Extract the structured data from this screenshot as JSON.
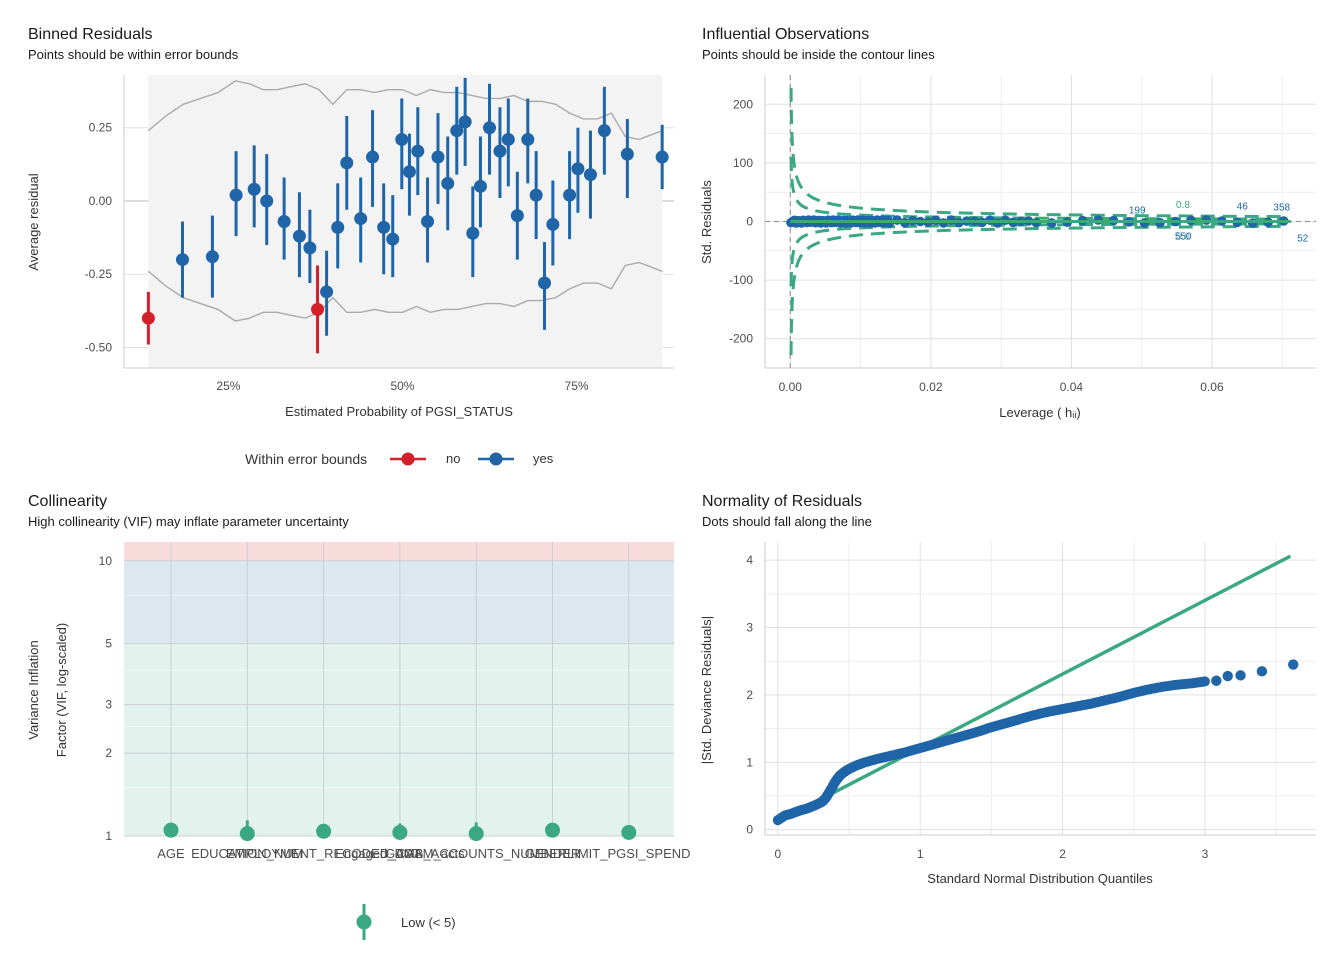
{
  "colors": {
    "blue": "#1f65a8",
    "red": "#d4202a",
    "green": "#3aa882",
    "grid": "#e0e0e0",
    "band": "#aaaaaa",
    "zone_high": "#f8dcdc",
    "zone_mod": "#dde7f0",
    "zone_low": "#e2f2ec"
  },
  "chart_data": [
    {
      "id": "binned",
      "type": "scatter",
      "title": "Binned Residuals",
      "subtitle": "Points should be within error bounds",
      "xlabel": "Estimated Probability of PGSI_STATUS",
      "ylabel": "Average residual",
      "xlim": [
        0.1,
        0.89
      ],
      "ylim": [
        -0.57,
        0.43
      ],
      "xticks": [
        0.25,
        0.5,
        0.75
      ],
      "xticklabels": [
        "25%",
        "50%",
        "75%"
      ],
      "yticks": [
        -0.5,
        -0.25,
        0.0,
        0.25
      ],
      "yticklabels": [
        "-0.50",
        "-0.25",
        "0.00",
        "0.25"
      ],
      "legend_title": "Within error bounds",
      "legend": [
        "no",
        "yes"
      ],
      "points": [
        {
          "x": 0.135,
          "y": -0.4,
          "lo": -0.49,
          "hi": -0.31,
          "grp": "no"
        },
        {
          "x": 0.184,
          "y": -0.2,
          "lo": -0.33,
          "hi": -0.07,
          "grp": "yes"
        },
        {
          "x": 0.227,
          "y": -0.19,
          "lo": -0.33,
          "hi": -0.05,
          "grp": "yes"
        },
        {
          "x": 0.261,
          "y": 0.02,
          "lo": -0.12,
          "hi": 0.17,
          "grp": "yes"
        },
        {
          "x": 0.287,
          "y": 0.04,
          "lo": -0.09,
          "hi": 0.19,
          "grp": "yes"
        },
        {
          "x": 0.305,
          "y": 0.0,
          "lo": -0.15,
          "hi": 0.16,
          "grp": "yes"
        },
        {
          "x": 0.33,
          "y": -0.07,
          "lo": -0.2,
          "hi": 0.08,
          "grp": "yes"
        },
        {
          "x": 0.352,
          "y": -0.12,
          "lo": -0.26,
          "hi": 0.03,
          "grp": "yes"
        },
        {
          "x": 0.367,
          "y": -0.16,
          "lo": -0.28,
          "hi": -0.03,
          "grp": "yes"
        },
        {
          "x": 0.378,
          "y": -0.37,
          "lo": -0.52,
          "hi": -0.22,
          "grp": "no"
        },
        {
          "x": 0.391,
          "y": -0.31,
          "lo": -0.46,
          "hi": -0.17,
          "grp": "yes"
        },
        {
          "x": 0.407,
          "y": -0.09,
          "lo": -0.23,
          "hi": 0.06,
          "grp": "yes"
        },
        {
          "x": 0.42,
          "y": 0.13,
          "lo": -0.03,
          "hi": 0.29,
          "grp": "yes"
        },
        {
          "x": 0.44,
          "y": -0.06,
          "lo": -0.21,
          "hi": 0.08,
          "grp": "yes"
        },
        {
          "x": 0.457,
          "y": 0.15,
          "lo": -0.02,
          "hi": 0.31,
          "grp": "yes"
        },
        {
          "x": 0.473,
          "y": -0.09,
          "lo": -0.25,
          "hi": 0.06,
          "grp": "yes"
        },
        {
          "x": 0.486,
          "y": -0.13,
          "lo": -0.26,
          "hi": 0.02,
          "grp": "yes"
        },
        {
          "x": 0.499,
          "y": 0.21,
          "lo": 0.04,
          "hi": 0.35,
          "grp": "yes"
        },
        {
          "x": 0.51,
          "y": 0.1,
          "lo": -0.05,
          "hi": 0.23,
          "grp": "yes"
        },
        {
          "x": 0.522,
          "y": 0.17,
          "lo": 0.02,
          "hi": 0.32,
          "grp": "yes"
        },
        {
          "x": 0.536,
          "y": -0.07,
          "lo": -0.21,
          "hi": 0.08,
          "grp": "yes"
        },
        {
          "x": 0.551,
          "y": 0.15,
          "lo": -0.01,
          "hi": 0.3,
          "grp": "yes"
        },
        {
          "x": 0.565,
          "y": 0.06,
          "lo": -0.1,
          "hi": 0.22,
          "grp": "yes"
        },
        {
          "x": 0.578,
          "y": 0.24,
          "lo": 0.09,
          "hi": 0.39,
          "grp": "yes"
        },
        {
          "x": 0.59,
          "y": 0.27,
          "lo": 0.12,
          "hi": 0.42,
          "grp": "yes"
        },
        {
          "x": 0.601,
          "y": -0.11,
          "lo": -0.26,
          "hi": 0.05,
          "grp": "yes"
        },
        {
          "x": 0.612,
          "y": 0.05,
          "lo": -0.09,
          "hi": 0.22,
          "grp": "yes"
        },
        {
          "x": 0.625,
          "y": 0.25,
          "lo": 0.09,
          "hi": 0.4,
          "grp": "yes"
        },
        {
          "x": 0.64,
          "y": 0.17,
          "lo": 0.01,
          "hi": 0.32,
          "grp": "yes"
        },
        {
          "x": 0.652,
          "y": 0.21,
          "lo": 0.05,
          "hi": 0.35,
          "grp": "yes"
        },
        {
          "x": 0.665,
          "y": -0.05,
          "lo": -0.2,
          "hi": 0.1,
          "grp": "yes"
        },
        {
          "x": 0.68,
          "y": 0.21,
          "lo": 0.06,
          "hi": 0.35,
          "grp": "yes"
        },
        {
          "x": 0.692,
          "y": 0.02,
          "lo": -0.13,
          "hi": 0.17,
          "grp": "yes"
        },
        {
          "x": 0.704,
          "y": -0.28,
          "lo": -0.44,
          "hi": -0.14,
          "grp": "yes"
        },
        {
          "x": 0.716,
          "y": -0.08,
          "lo": -0.22,
          "hi": 0.07,
          "grp": "yes"
        },
        {
          "x": 0.74,
          "y": 0.02,
          "lo": -0.13,
          "hi": 0.17,
          "grp": "yes"
        },
        {
          "x": 0.752,
          "y": 0.11,
          "lo": -0.04,
          "hi": 0.25,
          "grp": "yes"
        },
        {
          "x": 0.77,
          "y": 0.09,
          "lo": -0.06,
          "hi": 0.24,
          "grp": "yes"
        },
        {
          "x": 0.79,
          "y": 0.24,
          "lo": 0.09,
          "hi": 0.39,
          "grp": "yes"
        },
        {
          "x": 0.823,
          "y": 0.16,
          "lo": 0.01,
          "hi": 0.28,
          "grp": "yes"
        },
        {
          "x": 0.873,
          "y": 0.15,
          "lo": 0.04,
          "hi": 0.26,
          "grp": "yes"
        }
      ],
      "bounds_x": [
        0.135,
        0.16,
        0.185,
        0.21,
        0.235,
        0.26,
        0.28,
        0.3,
        0.32,
        0.34,
        0.36,
        0.38,
        0.4,
        0.42,
        0.44,
        0.46,
        0.48,
        0.5,
        0.52,
        0.54,
        0.56,
        0.58,
        0.6,
        0.62,
        0.64,
        0.66,
        0.68,
        0.7,
        0.72,
        0.74,
        0.76,
        0.78,
        0.8,
        0.82,
        0.84,
        0.873
      ],
      "bounds_upper": [
        0.24,
        0.29,
        0.33,
        0.35,
        0.37,
        0.41,
        0.4,
        0.38,
        0.38,
        0.39,
        0.4,
        0.38,
        0.33,
        0.38,
        0.38,
        0.37,
        0.38,
        0.38,
        0.36,
        0.38,
        0.37,
        0.37,
        0.36,
        0.35,
        0.35,
        0.36,
        0.34,
        0.34,
        0.33,
        0.3,
        0.28,
        0.28,
        0.3,
        0.22,
        0.21,
        0.24
      ]
    },
    {
      "id": "influential",
      "type": "scatter",
      "title": "Influential Observations",
      "subtitle": "Points should be inside the contour lines",
      "xlabel": "Leverage ( hᵢᵢ)",
      "ylabel": "Std. Residuals",
      "xlim": [
        -0.0036,
        0.0748
      ],
      "ylim": [
        -250,
        250
      ],
      "xticks": [
        0.0,
        0.02,
        0.04,
        0.06
      ],
      "xticklabels": [
        "0.00",
        "0.02",
        "0.04",
        "0.06"
      ],
      "yticks": [
        -200,
        -100,
        0,
        100,
        200
      ],
      "yticklabels": [
        "-200",
        "-100",
        "0",
        "100",
        "200"
      ],
      "contour_label": "0.8",
      "contour_label_small": "0.8",
      "labeled_points": [
        {
          "x": 0.0505,
          "y": 0,
          "label": "199"
        },
        {
          "x": 0.0559,
          "y": 0,
          "label": "550"
        },
        {
          "x": 0.0643,
          "y": 0,
          "label": "46"
        },
        {
          "x": 0.0705,
          "y": 0,
          "label": "358"
        },
        {
          "x": 0.0712,
          "y": 0,
          "label": "52"
        }
      ]
    },
    {
      "id": "collinearity",
      "type": "scatter",
      "title": "Collinearity",
      "subtitle": "High collinearity (VIF) may inflate parameter uncertainty",
      "ylabel_line1": "Variance Inflation",
      "ylabel_line2": "Factor (VIF, log-scaled)",
      "yscale": "log",
      "ylim": [
        1,
        11.7
      ],
      "yticks": [
        1,
        2,
        3,
        5,
        10
      ],
      "yticklabels": [
        "1",
        "2",
        "3",
        "5",
        "10"
      ],
      "categories": [
        "AGE",
        "EDUCATION_NUM",
        "EMPLOYMENT_RECODED_CAT",
        "Engaged_DGAM_acts",
        "GAMB_ACCOUNTS_NUMBER",
        "GENDER",
        "LIMIT_PGSI_SPEND"
      ],
      "values": [
        1.05,
        1.02,
        1.04,
        1.03,
        1.02,
        1.05,
        1.03
      ],
      "ci_hi": [
        1.09,
        1.14,
        1.08,
        1.11,
        1.12,
        1.08,
        1.09
      ],
      "legend": [
        "Low (< 5)"
      ]
    },
    {
      "id": "normality",
      "type": "scatter",
      "title": "Normality of Residuals",
      "subtitle": "Dots should fall along the line",
      "xlabel": "Standard Normal Distribution Quantiles",
      "ylabel": "|Std. Deviance Residuals|",
      "xlim": [
        -0.09,
        3.78
      ],
      "ylim": [
        -0.08,
        4.27
      ],
      "xticks": [
        0,
        1,
        2,
        3
      ],
      "yticks": [
        0,
        1,
        2,
        3,
        4
      ],
      "line": {
        "x": [
          0,
          3.6
        ],
        "y": [
          0.12,
          4.06
        ]
      },
      "curve": {
        "x": [
          0.0,
          0.05,
          0.1,
          0.15,
          0.2,
          0.25,
          0.3,
          0.32,
          0.34,
          0.36,
          0.38,
          0.4,
          0.42,
          0.44,
          0.47,
          0.5,
          0.55,
          0.6,
          0.7,
          0.8,
          0.9,
          1.0,
          1.1,
          1.2,
          1.3,
          1.4,
          1.5,
          1.6,
          1.7,
          1.8,
          1.9,
          2.0,
          2.1,
          2.2,
          2.3,
          2.4,
          2.5,
          2.6,
          2.7,
          2.8,
          2.9,
          3.0
        ],
        "y": [
          0.14,
          0.21,
          0.24,
          0.28,
          0.31,
          0.35,
          0.4,
          0.43,
          0.48,
          0.55,
          0.62,
          0.7,
          0.76,
          0.81,
          0.86,
          0.9,
          0.95,
          0.99,
          1.05,
          1.1,
          1.15,
          1.21,
          1.27,
          1.33,
          1.39,
          1.45,
          1.52,
          1.58,
          1.64,
          1.7,
          1.75,
          1.79,
          1.83,
          1.87,
          1.92,
          1.97,
          2.03,
          2.08,
          2.12,
          2.15,
          2.17,
          2.2
        ]
      },
      "outliers": [
        {
          "x": 3.08,
          "y": 2.21
        },
        {
          "x": 3.16,
          "y": 2.28
        },
        {
          "x": 3.25,
          "y": 2.29
        },
        {
          "x": 3.4,
          "y": 2.35
        },
        {
          "x": 3.62,
          "y": 2.45
        }
      ]
    }
  ]
}
